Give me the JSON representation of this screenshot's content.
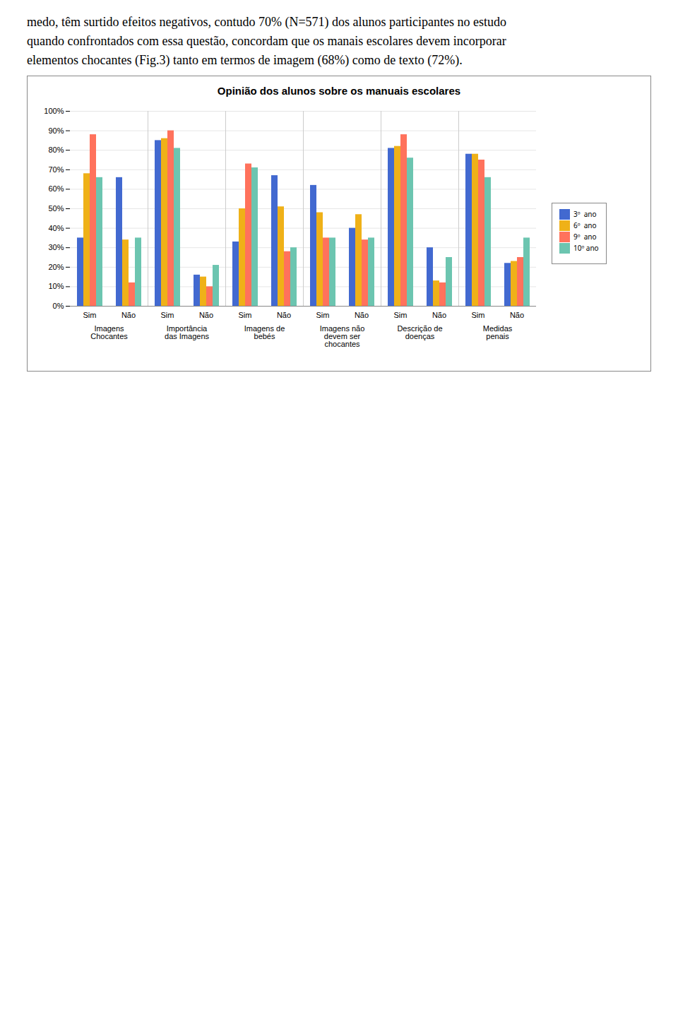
{
  "chart_data": {
    "type": "bar",
    "title": "Opinião dos alunos sobre os manuais escolares",
    "annotations": [
      "medo, têm surtido efeitos negativos, contudo 70% (N=571) dos alunos participantes no estudo",
      "quando confrontados com essa questão, concordam que os manais escolares devem incorporar",
      "elementos chocantes (Fig.3) tanto em termos de imagem (68%) como de texto (72%)."
    ],
    "categories": [
      "Sim",
      "Não",
      "Sim",
      "Não",
      "Sim",
      "Não",
      "Sim",
      "Não",
      "Sim",
      "Não",
      "Sim",
      "Não"
    ],
    "group_labels": [
      "Imagens\nChocantes",
      "Importância\ndas Imagens",
      "Imagens de\nbebés",
      "Imagens não\ndevem ser\nchocantes",
      "Descrição de\ndoenças",
      "Medidas\npenais"
    ],
    "series": [
      {
        "name": "3º  ano",
        "values": [
          35,
          66,
          85,
          16,
          33,
          67,
          62,
          40,
          81,
          30,
          78,
          22
        ]
      },
      {
        "name": "6º  ano",
        "values": [
          68,
          34,
          86,
          15,
          50,
          51,
          48,
          47,
          82,
          13,
          78,
          23
        ]
      },
      {
        "name": "9º  ano",
        "values": [
          88,
          12,
          90,
          10,
          73,
          28,
          35,
          34,
          88,
          12,
          75,
          25
        ]
      },
      {
        "name": "10º ano",
        "values": [
          66,
          35,
          81,
          21,
          71,
          30,
          35,
          35,
          76,
          25,
          66,
          35
        ]
      }
    ],
    "ylim": [
      0,
      100
    ],
    "yticks": [
      {
        "value": 0,
        "label": "0%"
      },
      {
        "value": 10,
        "label": "10%"
      },
      {
        "value": 20,
        "label": "20%"
      },
      {
        "value": 30,
        "label": "30%"
      },
      {
        "value": 40,
        "label": "40%"
      },
      {
        "value": 50,
        "label": "50%"
      },
      {
        "value": 60,
        "label": "60%"
      },
      {
        "value": 70,
        "label": "70%"
      },
      {
        "value": 80,
        "label": "80%"
      },
      {
        "value": 90,
        "label": "90%"
      },
      {
        "value": 100,
        "label": "100%"
      }
    ],
    "grid": true,
    "legend": "right"
  }
}
